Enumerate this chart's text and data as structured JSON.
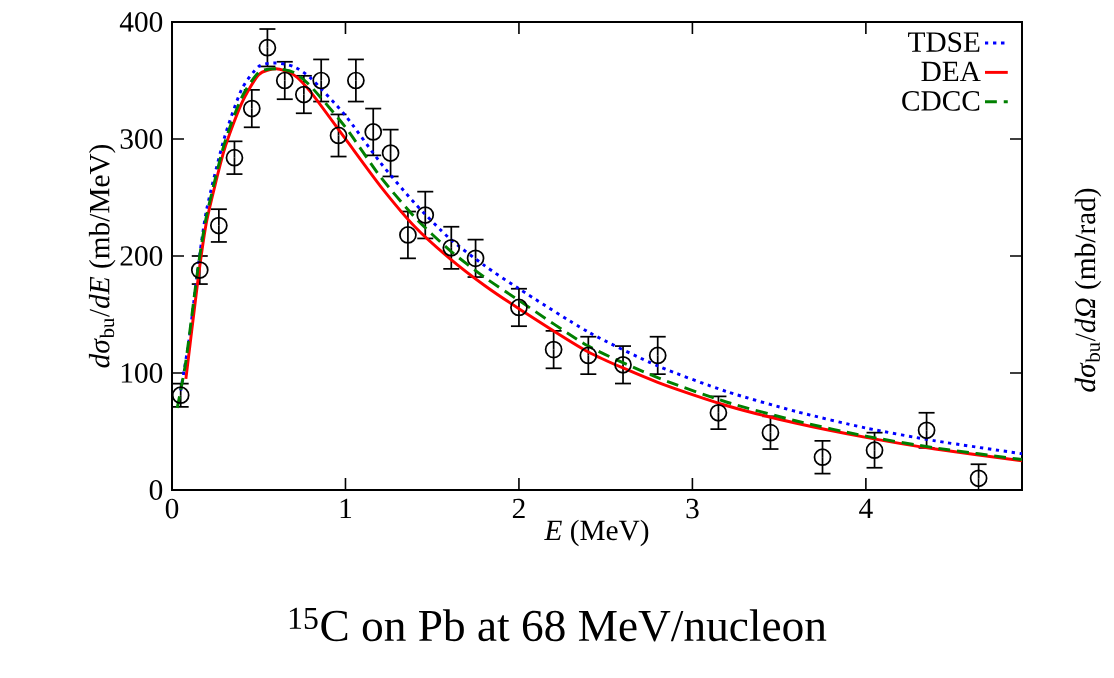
{
  "chart_data": {
    "type": "line",
    "title": "$^{15}$C on Pb at 68 MeV/nucleon",
    "xlabel": "*E* (MeV)",
    "ylabel": "*dσ*$_{bu}$/*dE* (mb/MeV)",
    "y2label": "*dσ*$_{bu}$/*dΩ* (mb/rad)",
    "xlim": [
      0,
      4.9
    ],
    "ylim": [
      0,
      400
    ],
    "xticks": [
      0,
      1,
      2,
      3,
      4
    ],
    "yticks": [
      0,
      100,
      200,
      300,
      400
    ],
    "legend": "top right",
    "grid": false,
    "series": [
      {
        "type": "scatter",
        "color": "#000000",
        "marker": "circle",
        "x": [
          0.05,
          0.16,
          0.27,
          0.36,
          0.46,
          0.55,
          0.65,
          0.76,
          0.86,
          0.96,
          1.06,
          1.16,
          1.26,
          1.36,
          1.46,
          1.61,
          1.75,
          2.0,
          2.2,
          2.4,
          2.6,
          2.8,
          3.15,
          3.45,
          3.75,
          4.05,
          4.35,
          4.65
        ],
        "values": [
          81,
          188,
          226,
          284,
          326,
          378,
          350,
          338,
          350,
          303,
          350,
          306,
          288,
          218,
          235,
          207,
          198,
          156,
          120,
          115,
          107,
          115,
          66,
          49,
          28,
          34,
          51,
          10
        ],
        "errors": [
          10,
          12,
          14,
          14,
          16,
          16,
          16,
          16,
          18,
          18,
          18,
          20,
          20,
          20,
          20,
          18,
          16,
          16,
          16,
          16,
          16,
          16,
          14,
          14,
          14,
          15,
          15,
          12
        ]
      },
      {
        "name": "TDSE",
        "color": "#0000ff",
        "line_style": "dotted",
        "x": [
          0.05,
          0.1,
          0.15,
          0.2,
          0.3,
          0.4,
          0.5,
          0.6,
          0.7,
          0.8,
          1.0,
          1.2,
          1.4,
          1.6,
          1.8,
          2.0,
          2.4,
          2.8,
          3.2,
          3.6,
          4.0,
          4.4,
          4.9
        ],
        "values": [
          85,
          130,
          190,
          240,
          300,
          342,
          362,
          365,
          362,
          352,
          320,
          280,
          245,
          215,
          192,
          172,
          135,
          106,
          84,
          67,
          53,
          42,
          31
        ]
      },
      {
        "name": "DEA",
        "color": "#ff0000",
        "line_style": "solid",
        "x": [
          0.08,
          0.15,
          0.2,
          0.3,
          0.4,
          0.5,
          0.6,
          0.7,
          0.8,
          1.0,
          1.2,
          1.4,
          1.6,
          1.8,
          2.0,
          2.4,
          2.8,
          3.2,
          3.6,
          4.0,
          4.4,
          4.9
        ],
        "values": [
          95,
          180,
          230,
          290,
          330,
          355,
          360,
          355,
          340,
          300,
          260,
          225,
          198,
          175,
          155,
          118,
          92,
          72,
          57,
          45,
          35,
          25
        ]
      },
      {
        "name": "CDCC",
        "color": "#008000",
        "line_style": "dashed",
        "x": [
          0.03,
          0.08,
          0.15,
          0.2,
          0.3,
          0.4,
          0.5,
          0.6,
          0.7,
          0.8,
          1.0,
          1.2,
          1.4,
          1.6,
          1.8,
          2.0,
          2.4,
          2.8,
          3.2,
          3.6,
          4.0,
          4.4,
          4.9
        ],
        "values": [
          70,
          110,
          190,
          235,
          295,
          335,
          357,
          360,
          357,
          345,
          310,
          268,
          233,
          205,
          182,
          162,
          123,
          96,
          75,
          59,
          46,
          36,
          26
        ]
      }
    ]
  }
}
